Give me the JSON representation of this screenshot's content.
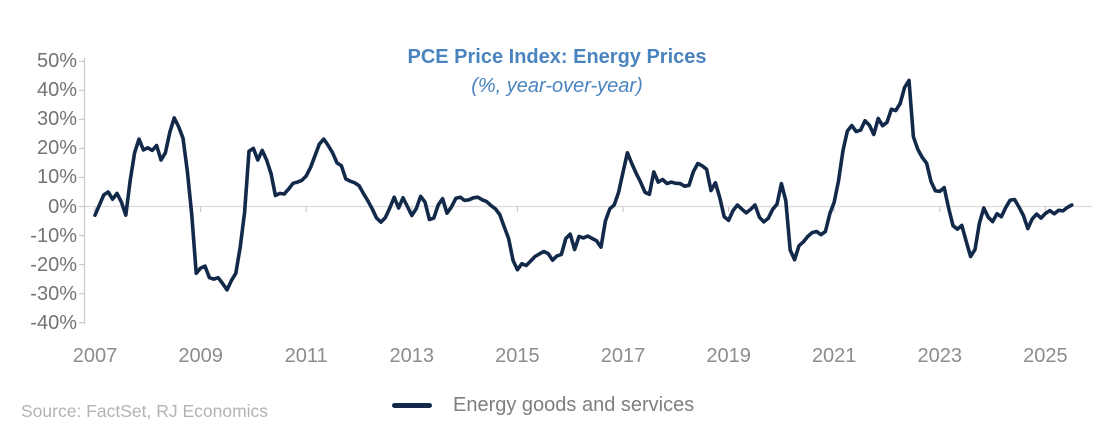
{
  "source": {
    "text": "Source: FactSet, RJ Economics"
  },
  "chart_data": {
    "type": "line",
    "title": "PCE Price Index: Energy Prices",
    "subtitle": "(%, year-over-year)",
    "title_color": "#4A84BE",
    "frequency": "monthly",
    "x_start": "2007-01",
    "x_end": "2025-07",
    "x_tick_labels": [
      "2007",
      "2009",
      "2011",
      "2013",
      "2015",
      "2017",
      "2019",
      "2021",
      "2023",
      "2025"
    ],
    "y_ticks": [
      50,
      40,
      30,
      20,
      10,
      0,
      -10,
      -20,
      -30,
      -40
    ],
    "y_tick_labels": [
      "50%",
      "40%",
      "30%",
      "20%",
      "10%",
      "0%",
      "-10%",
      "-20%",
      "-30%",
      "-40%"
    ],
    "ylim": [
      -40,
      50
    ],
    "grid": "zero-line-only",
    "axis_color": "#c9c9c9",
    "gridline_color": "#dcdcdc",
    "legend_position": "bottom-center",
    "series": [
      {
        "name": "Energy goods and services",
        "color": "#12294A",
        "values": [
          -3,
          0.5,
          4,
          5,
          2.5,
          4.5,
          1.5,
          -3,
          9,
          18.5,
          23.2,
          19.5,
          20.2,
          19.3,
          21,
          16,
          18.5,
          25.5,
          30.5,
          27.5,
          23.5,
          12,
          -3,
          -23,
          -21.2,
          -20.5,
          -24.5,
          -25,
          -24.5,
          -26.5,
          -28.7,
          -25.5,
          -23,
          -14,
          -2,
          19,
          20,
          16,
          19.3,
          16,
          11.4,
          3.8,
          4.5,
          4.3,
          6,
          8,
          8.4,
          9,
          10.5,
          13.5,
          17.5,
          21.5,
          23.2,
          21,
          18.5,
          15,
          14,
          9.5,
          8.7,
          8.2,
          7.2,
          4.5,
          2,
          -0.8,
          -4,
          -5.4,
          -3.8,
          -0.5,
          3.2,
          -0.5,
          3,
          0,
          -3.1,
          -0.8,
          3.5,
          1.5,
          -4.5,
          -4,
          0.5,
          2.7,
          -2.3,
          -0.2,
          2.8,
          3.2,
          2.1,
          2.3,
          3,
          3.2,
          2.3,
          1.7,
          0.3,
          -0.8,
          -2.8,
          -7,
          -11,
          -18.5,
          -21.8,
          -19.7,
          -20.3,
          -18.8,
          -17.2,
          -16.3,
          -15.5,
          -16.2,
          -18.5,
          -17,
          -16.5,
          -11,
          -9.5,
          -14.8,
          -10.3,
          -10.8,
          -10.2,
          -11,
          -11.8,
          -14,
          -5,
          -0.8,
          0.5,
          4.9,
          11.8,
          18.5,
          14.8,
          11.4,
          8.4,
          4.9,
          4.2,
          11.9,
          8.4,
          9.3,
          7.9,
          8.4,
          8,
          7.9,
          7,
          7.3,
          12,
          14.8,
          14,
          12.8,
          5.5,
          8.2,
          3,
          -3.5,
          -4.8,
          -1.4,
          0.5,
          -0.9,
          -2.2,
          -1,
          0.5,
          -3.7,
          -5.3,
          -4.1,
          -1,
          0.8,
          7.9,
          2,
          -15,
          -18.3,
          -13.5,
          -12.2,
          -10.3,
          -9,
          -8.6,
          -9.7,
          -8.6,
          -2.5,
          1.5,
          9,
          19.3,
          26,
          27.9,
          25.8,
          26.3,
          29.5,
          28,
          24.8,
          30.3,
          27.8,
          29,
          33.5,
          33,
          35.5,
          41,
          43.4,
          24,
          19.7,
          16.9,
          14.9,
          8.6,
          5.4,
          5.2,
          6.5,
          -0.5,
          -6.6,
          -7.8,
          -6.5,
          -12,
          -17.2,
          -14.8,
          -5.8,
          -0.5,
          -3.7,
          -5.2,
          -2.5,
          -3.5,
          -0.3,
          2.2,
          2.4,
          -0.2,
          -3.1,
          -7.6,
          -4.3,
          -2.6,
          -4,
          -2.4,
          -1.4,
          -2.5,
          -1.3,
          -1.5,
          -0.3,
          0.5
        ]
      }
    ]
  }
}
